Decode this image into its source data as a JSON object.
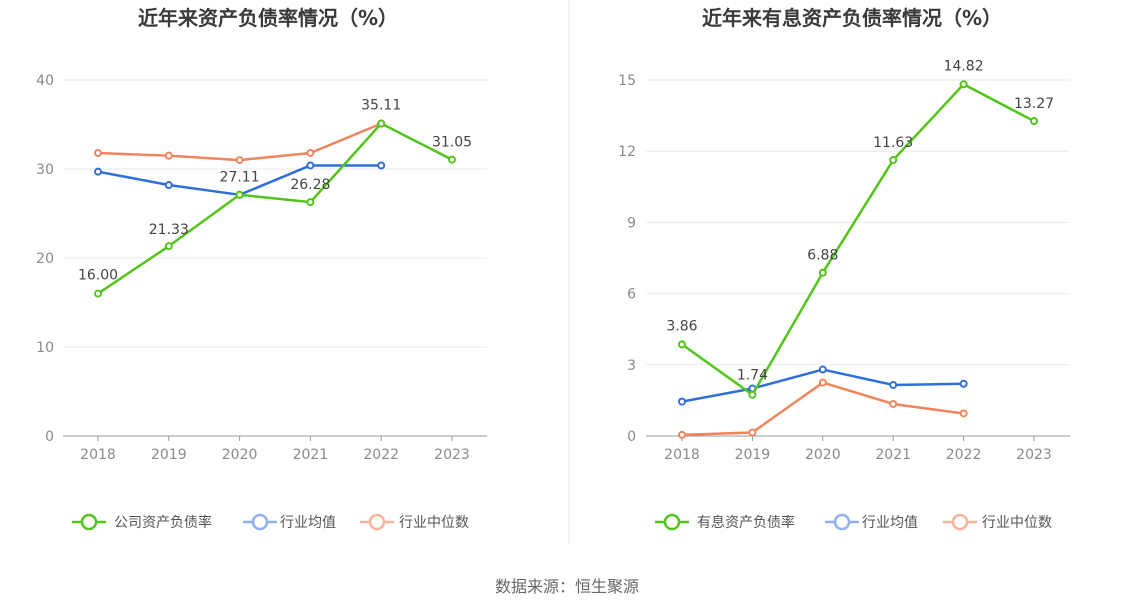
{
  "source": "数据来源：恒生聚源",
  "colors": {
    "green": "#52c41a",
    "blue": "#2f6fdc",
    "orange": "#f0845c",
    "grid": "#e6e9ef",
    "axis": "#999999",
    "divider": "#e8e8e8"
  },
  "chart_data": [
    {
      "type": "line",
      "title": "近年来资产负债率情况（%）",
      "categories": [
        "2018",
        "2019",
        "2020",
        "2021",
        "2022",
        "2023"
      ],
      "ylim": [
        0,
        40
      ],
      "yticks": [
        0,
        10,
        20,
        30,
        40
      ],
      "xlabel": "",
      "ylabel": "",
      "legend_position": "bottom",
      "series": [
        {
          "name": "公司资产负债率",
          "color": "#52c41a",
          "values": [
            16.0,
            21.33,
            27.11,
            26.28,
            35.11,
            31.05
          ],
          "labels": [
            "16.00",
            "21.33",
            "27.11",
            "26.28",
            "35.11",
            "31.05"
          ]
        },
        {
          "name": "行业均值",
          "color": "#2f6fdc",
          "values": [
            29.7,
            28.2,
            27.1,
            30.4,
            30.4,
            null
          ],
          "labels": null
        },
        {
          "name": "行业中位数",
          "color": "#f0845c",
          "values": [
            31.8,
            31.5,
            31.0,
            31.8,
            35.1,
            null
          ],
          "labels": null
        }
      ]
    },
    {
      "type": "line",
      "title": "近年来有息资产负债率情况（%）",
      "categories": [
        "2018",
        "2019",
        "2020",
        "2021",
        "2022",
        "2023"
      ],
      "ylim": [
        0,
        15
      ],
      "yticks": [
        0,
        3,
        6,
        9,
        12,
        15
      ],
      "xlabel": "",
      "ylabel": "",
      "legend_position": "bottom",
      "series": [
        {
          "name": "有息资产负债率",
          "color": "#52c41a",
          "values": [
            3.86,
            1.74,
            6.88,
            11.63,
            14.82,
            13.27
          ],
          "labels": [
            "3.86",
            "1.74",
            "6.88",
            "11.63",
            "14.82",
            "13.27"
          ]
        },
        {
          "name": "行业均值",
          "color": "#2f6fdc",
          "values": [
            1.45,
            2.0,
            2.8,
            2.15,
            2.2,
            null
          ],
          "labels": null
        },
        {
          "name": "行业中位数",
          "color": "#f0845c",
          "values": [
            0.05,
            0.15,
            2.25,
            1.35,
            0.95,
            null
          ],
          "labels": null
        }
      ]
    }
  ]
}
